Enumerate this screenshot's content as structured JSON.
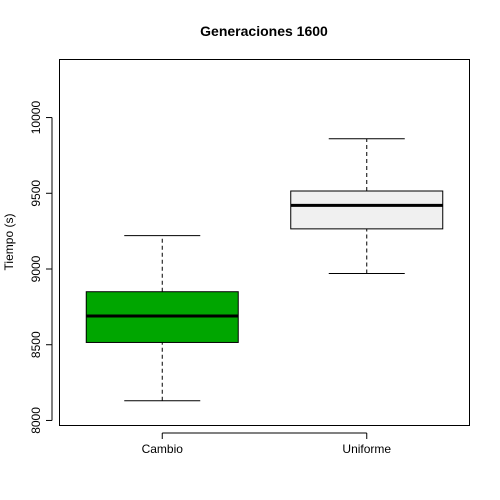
{
  "chart_data": {
    "type": "box",
    "title": "Generaciones 1600",
    "xlabel": "",
    "ylabel": "Tiempo (s)",
    "ylim": [
      7970,
      10380
    ],
    "yticks": [
      8000,
      8500,
      9000,
      9500,
      10000
    ],
    "ytick_labels": [
      "8000",
      "8500",
      "9000",
      "9500",
      "10000"
    ],
    "grid": false,
    "categories": [
      "Cambio",
      "Uniforme"
    ],
    "boxes": [
      {
        "category": "Cambio",
        "whisker_low": 8130,
        "q1": 8515,
        "median": 8690,
        "q3": 8850,
        "whisker_high": 9220,
        "fill": "#00A600"
      },
      {
        "category": "Uniforme",
        "whisker_low": 8970,
        "q1": 9265,
        "median": 9420,
        "q3": 9515,
        "whisker_high": 9860,
        "fill": "#F0F0F0"
      }
    ]
  }
}
